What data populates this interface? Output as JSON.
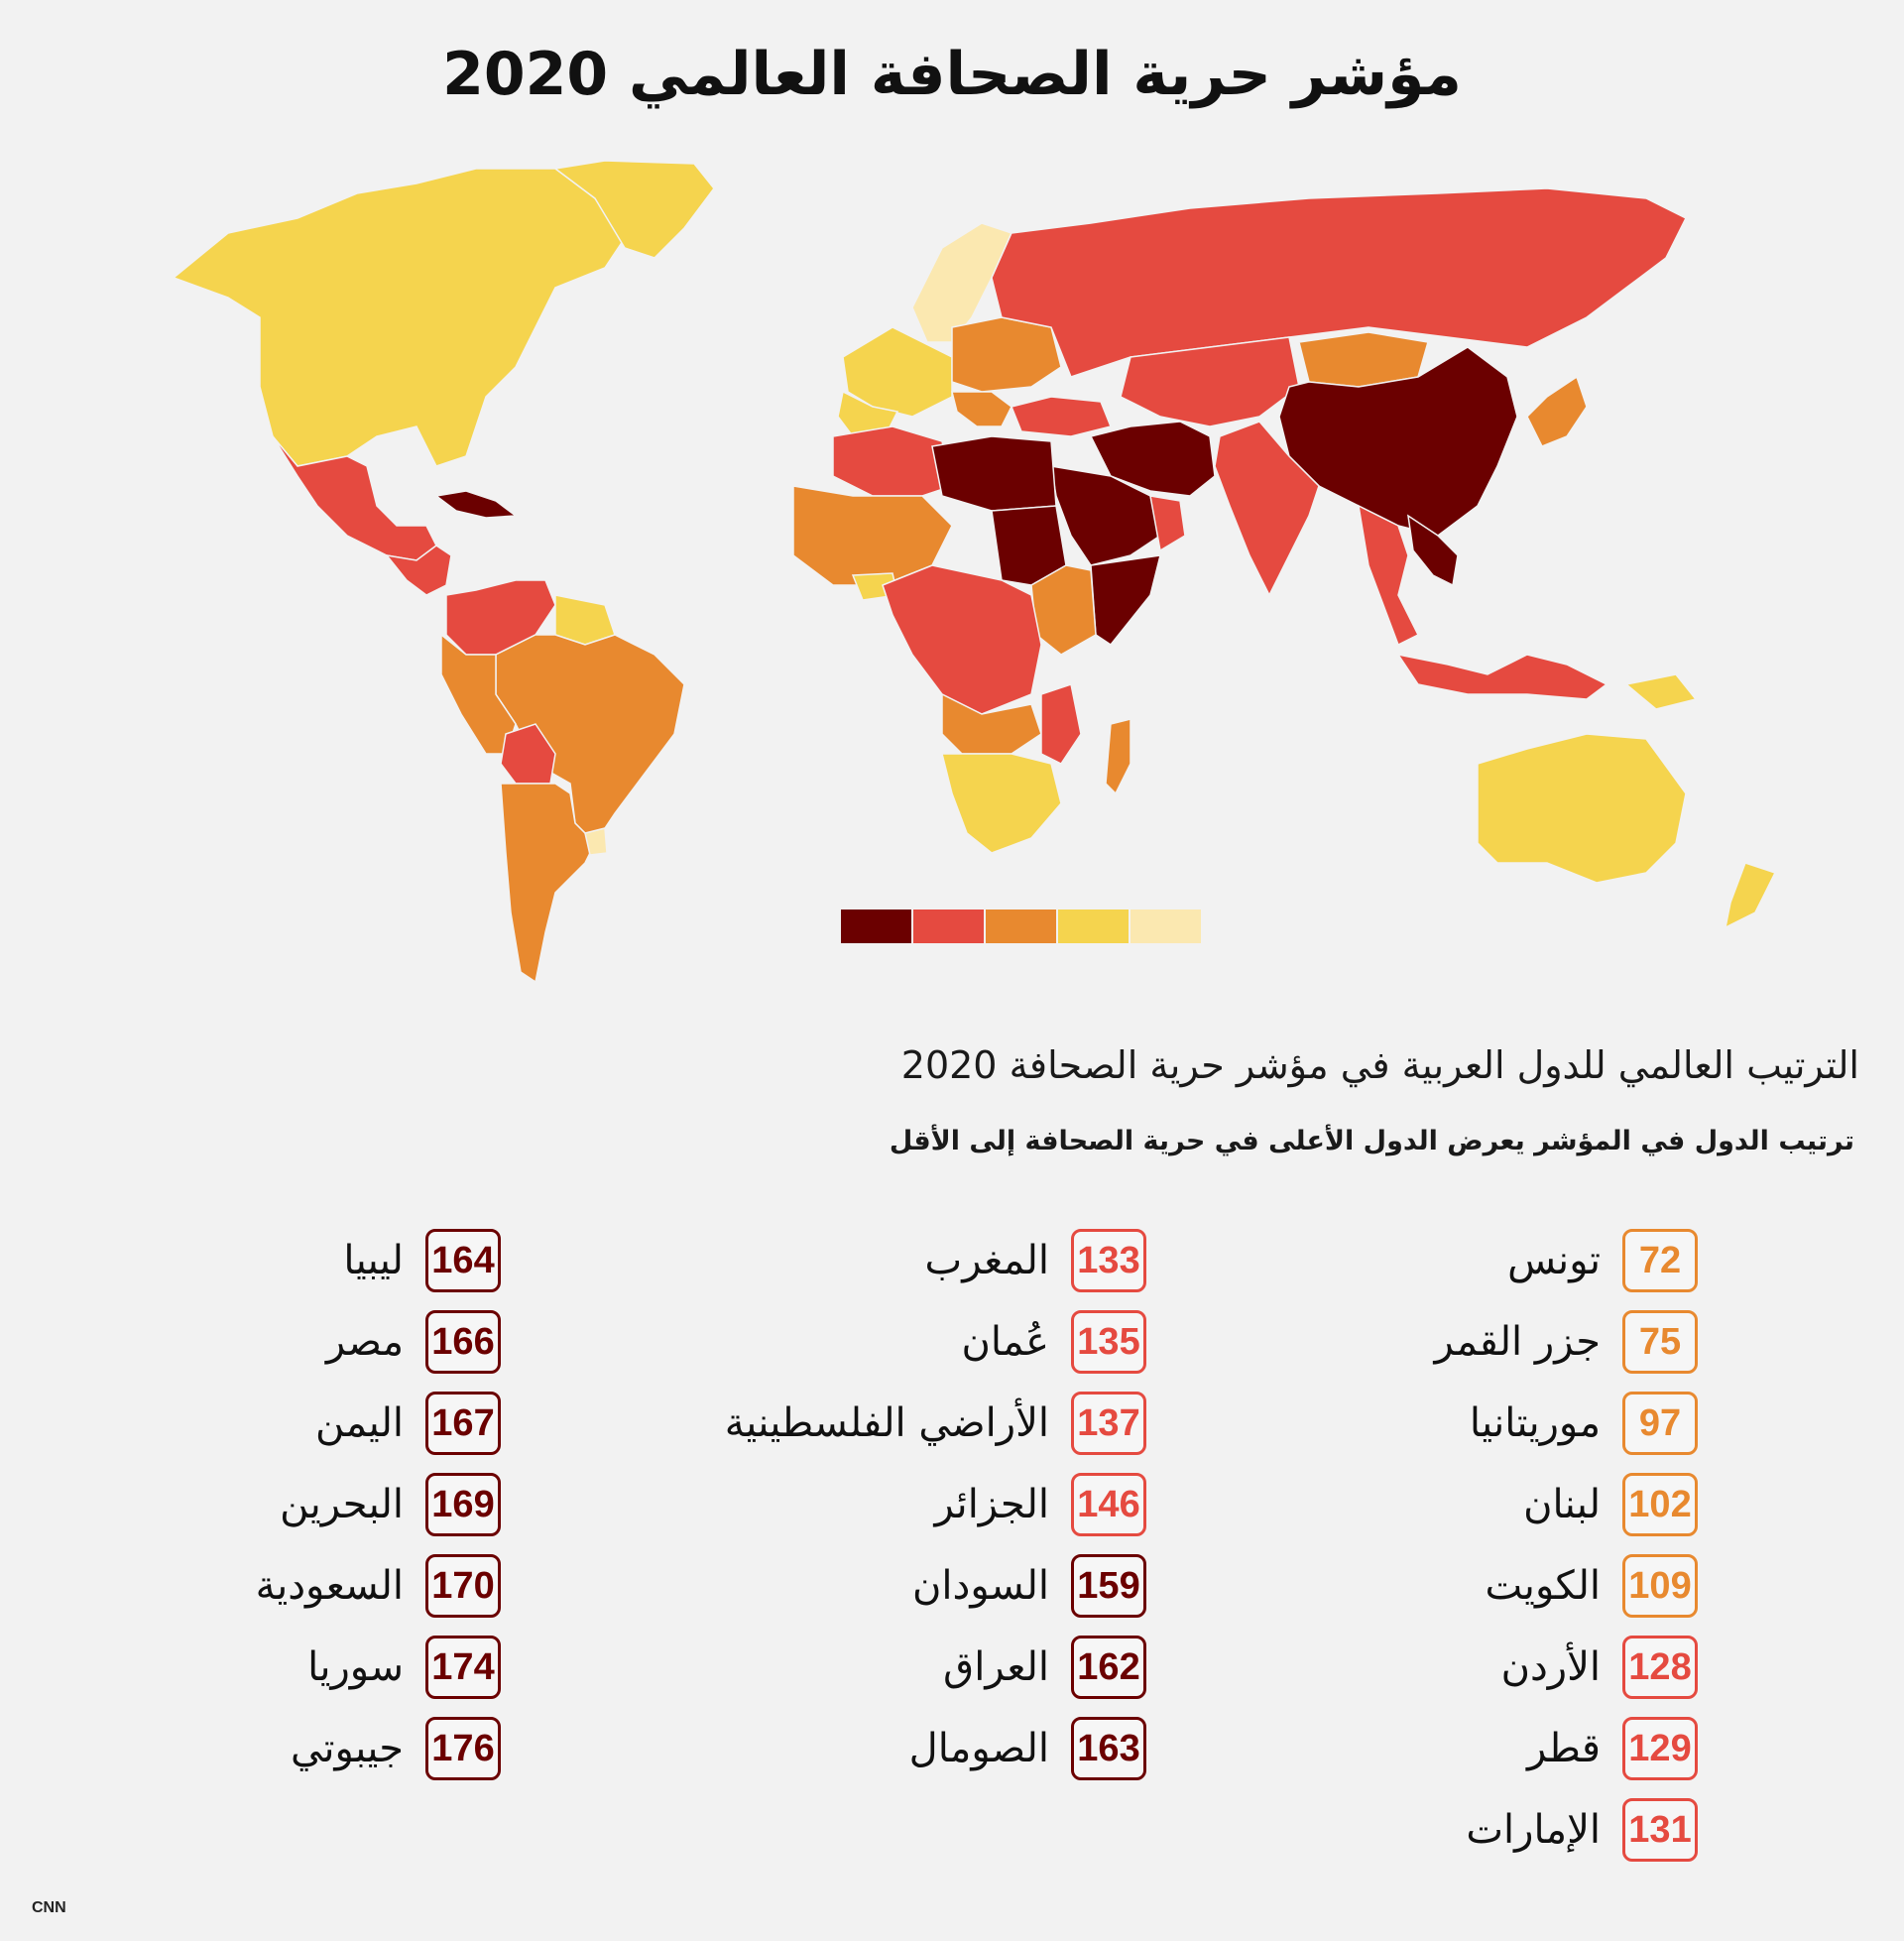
{
  "title": "مؤشر حرية الصحافة العالمي 2020",
  "colors": {
    "very_serious": "#6b0000",
    "difficult": "#e54a40",
    "problematic": "#e8892f",
    "satisfactory": "#f5d44e",
    "good": "#fbe8b0",
    "background": "#f2f2f2"
  },
  "legend": {
    "scale": [
      "very_serious",
      "difficult",
      "problematic",
      "satisfactory",
      "good"
    ]
  },
  "subtitle": "الترتيب العالمي للدول العربية في مؤشر حرية الصحافة 2020",
  "note": "ترتيب الدول في المؤشر يعرض الدول الأعلى في حرية الصحافة إلى الأقل",
  "columns": [
    [
      {
        "rank": "72",
        "name": "تونس",
        "level": "problematic"
      },
      {
        "rank": "75",
        "name": "جزر القمر",
        "level": "problematic"
      },
      {
        "rank": "97",
        "name": "موريتانيا",
        "level": "problematic"
      },
      {
        "rank": "102",
        "name": "لبنان",
        "level": "problematic"
      },
      {
        "rank": "109",
        "name": "الكويت",
        "level": "problematic"
      },
      {
        "rank": "128",
        "name": "الأردن",
        "level": "difficult"
      },
      {
        "rank": "129",
        "name": "قطر",
        "level": "difficult"
      },
      {
        "rank": "131",
        "name": "الإمارات",
        "level": "difficult"
      }
    ],
    [
      {
        "rank": "133",
        "name": "المغرب",
        "level": "difficult"
      },
      {
        "rank": "135",
        "name": "عُمان",
        "level": "difficult"
      },
      {
        "rank": "137",
        "name": "الأراضي الفلسطينية",
        "level": "difficult"
      },
      {
        "rank": "146",
        "name": "الجزائر",
        "level": "difficult"
      },
      {
        "rank": "159",
        "name": "السودان",
        "level": "very_serious"
      },
      {
        "rank": "162",
        "name": "العراق",
        "level": "very_serious"
      },
      {
        "rank": "163",
        "name": "الصومال",
        "level": "very_serious"
      }
    ],
    [
      {
        "rank": "164",
        "name": "ليبيا",
        "level": "very_serious"
      },
      {
        "rank": "166",
        "name": "مصر",
        "level": "very_serious"
      },
      {
        "rank": "167",
        "name": "اليمن",
        "level": "very_serious"
      },
      {
        "rank": "169",
        "name": "البحرين",
        "level": "very_serious"
      },
      {
        "rank": "170",
        "name": "السعودية",
        "level": "very_serious"
      },
      {
        "rank": "174",
        "name": "سوريا",
        "level": "very_serious"
      },
      {
        "rank": "176",
        "name": "جيبوتي",
        "level": "very_serious"
      }
    ]
  ],
  "regions": [
    {
      "name": "north-america",
      "level": "satisfactory"
    },
    {
      "name": "greenland",
      "level": "satisfactory"
    },
    {
      "name": "mexico",
      "level": "difficult"
    },
    {
      "name": "central-america",
      "level": "difficult"
    },
    {
      "name": "cuba",
      "level": "very_serious"
    },
    {
      "name": "venezuela-colombia",
      "level": "difficult"
    },
    {
      "name": "guianas",
      "level": "satisfactory"
    },
    {
      "name": "brazil",
      "level": "problematic"
    },
    {
      "name": "peru",
      "level": "problematic"
    },
    {
      "name": "bolivia",
      "level": "difficult"
    },
    {
      "name": "southern-cone",
      "level": "problematic"
    },
    {
      "name": "uruguay",
      "level": "good"
    },
    {
      "name": "scandinavia",
      "level": "good"
    },
    {
      "name": "western-europe",
      "level": "satisfactory"
    },
    {
      "name": "iberia",
      "level": "satisfactory"
    },
    {
      "name": "eastern-europe",
      "level": "problematic"
    },
    {
      "name": "balkans",
      "level": "problematic"
    },
    {
      "name": "russia",
      "level": "difficult"
    },
    {
      "name": "turkey",
      "level": "difficult"
    },
    {
      "name": "central-asia",
      "level": "difficult"
    },
    {
      "name": "mongolia",
      "level": "problematic"
    },
    {
      "name": "china",
      "level": "very_serious"
    },
    {
      "name": "vietnam-laos",
      "level": "very_serious"
    },
    {
      "name": "korea-japan",
      "level": "problematic"
    },
    {
      "name": "india",
      "level": "difficult"
    },
    {
      "name": "southeast-asia",
      "level": "difficult"
    },
    {
      "name": "indonesia",
      "level": "difficult"
    },
    {
      "name": "iran-gulf",
      "level": "very_serious"
    },
    {
      "name": "saudi-arabia",
      "level": "very_serious"
    },
    {
      "name": "oman",
      "level": "difficult"
    },
    {
      "name": "maghreb",
      "level": "difficult"
    },
    {
      "name": "libya-egypt",
      "level": "very_serious"
    },
    {
      "name": "west-africa",
      "level": "problematic"
    },
    {
      "name": "west-africa-coast",
      "level": "satisfactory"
    },
    {
      "name": "sudan",
      "level": "very_serious"
    },
    {
      "name": "horn-of-africa",
      "level": "very_serious"
    },
    {
      "name": "ethiopia-kenya",
      "level": "problematic"
    },
    {
      "name": "central-africa",
      "level": "difficult"
    },
    {
      "name": "angola-zambia",
      "level": "problematic"
    },
    {
      "name": "mozambique",
      "level": "difficult"
    },
    {
      "name": "southern-africa",
      "level": "satisfactory"
    },
    {
      "name": "madagascar",
      "level": "problematic"
    },
    {
      "name": "australia",
      "level": "satisfactory"
    },
    {
      "name": "new-zealand",
      "level": "satisfactory"
    },
    {
      "name": "papua",
      "level": "satisfactory"
    }
  ],
  "credit": "CNN"
}
